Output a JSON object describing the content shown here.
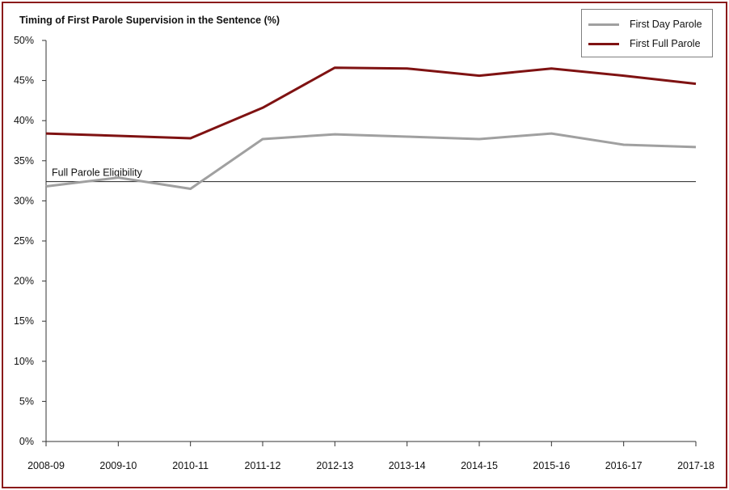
{
  "chart_data": {
    "type": "line",
    "title": "Timing of First Parole Supervision in the Sentence (%)",
    "xlabel": "",
    "ylabel": "",
    "categories": [
      "2008-09",
      "2009-10",
      "2010-11",
      "2011-12",
      "2012-13",
      "2013-14",
      "2014-15",
      "2015-16",
      "2016-17",
      "2017-18"
    ],
    "ylim": [
      0,
      50
    ],
    "ytick_step": 5,
    "ytick_labels": [
      "0%",
      "5%",
      "10%",
      "15%",
      "20%",
      "25%",
      "30%",
      "35%",
      "40%",
      "45%",
      "50%"
    ],
    "grid": false,
    "legend_position": "top-right",
    "series": [
      {
        "name": "First Day Parole",
        "color": "#a0a0a0",
        "values": [
          31.8,
          32.9,
          31.5,
          37.7,
          38.3,
          38.0,
          37.7,
          38.4,
          37.0,
          36.7
        ]
      },
      {
        "name": "First Full Parole",
        "color": "#7f1212",
        "values": [
          38.4,
          38.1,
          37.8,
          41.6,
          46.6,
          46.5,
          45.6,
          46.5,
          45.6,
          44.6
        ]
      }
    ],
    "reference_line": {
      "label": "Full Parole Eligibility",
      "value": 32.4,
      "color": "#222222"
    }
  }
}
